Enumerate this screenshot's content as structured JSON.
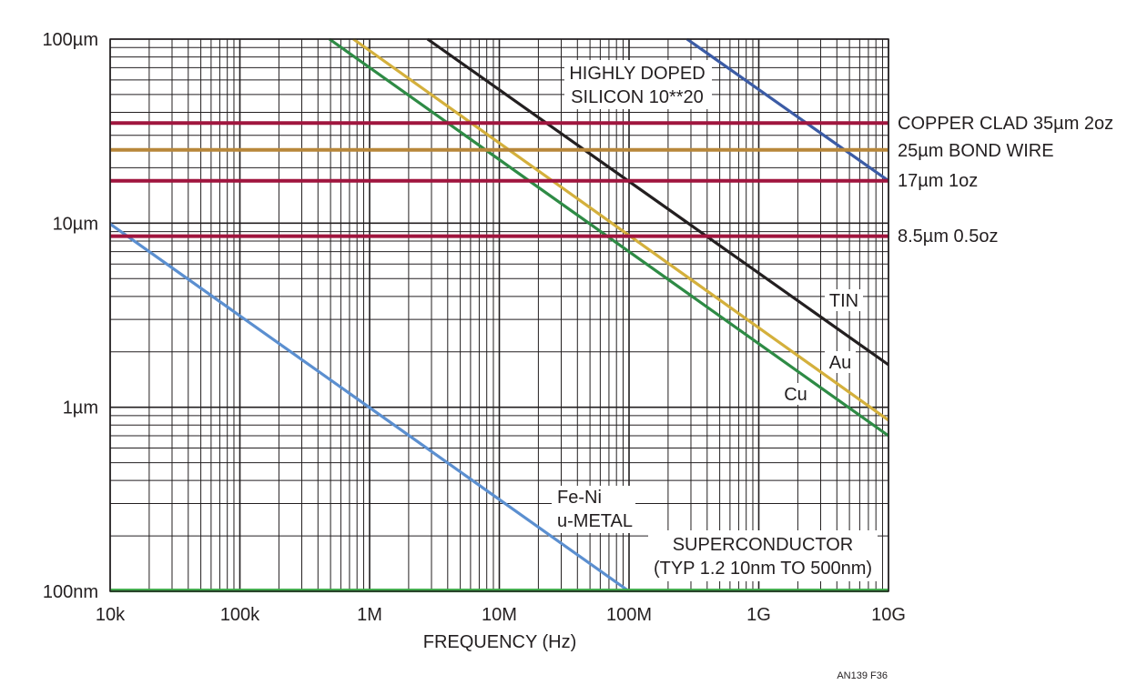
{
  "chart_data": {
    "type": "line",
    "xlabel": "FREQUENCY (Hz)",
    "x_scale": "log",
    "y_scale": "log",
    "xlim": [
      10000,
      10000000000
    ],
    "ylim": [
      1e-07,
      0.0001
    ],
    "grid": true,
    "x_ticks": [
      {
        "value": 10000,
        "label": "10k"
      },
      {
        "value": 100000,
        "label": "100k"
      },
      {
        "value": 1000000,
        "label": "1M"
      },
      {
        "value": 10000000,
        "label": "10M"
      },
      {
        "value": 100000000,
        "label": "100M"
      },
      {
        "value": 1000000000,
        "label": "1G"
      },
      {
        "value": 10000000000,
        "label": "10G"
      }
    ],
    "y_ticks": [
      {
        "value": 1e-07,
        "label": "100nm"
      },
      {
        "value": 1e-06,
        "label": "1µm"
      },
      {
        "value": 1e-05,
        "label": "10µm"
      },
      {
        "value": 0.0001,
        "label": "100µm"
      }
    ],
    "series": [
      {
        "id": "hds",
        "color": "#3b5ba5",
        "points": [
          [
            280000000,
            0.0001
          ],
          [
            10000000000,
            1.7e-05
          ]
        ]
      },
      {
        "id": "tin",
        "color": "#231f20",
        "points": [
          [
            2800000,
            0.0001
          ],
          [
            10000000000,
            1.7e-06
          ]
        ]
      },
      {
        "id": "au",
        "color": "#d4b03c",
        "points": [
          [
            750000,
            0.0001
          ],
          [
            10000000000,
            8.5e-07
          ]
        ]
      },
      {
        "id": "cu",
        "color": "#2e8b45",
        "points": [
          [
            490000,
            0.0001
          ],
          [
            10000000000,
            7e-07
          ]
        ]
      },
      {
        "id": "feni",
        "color": "#5b8fd0",
        "points": [
          [
            10000,
            9.9e-06
          ],
          [
            100000000,
            1e-07
          ]
        ]
      },
      {
        "id": "copper-clad",
        "color": "#a0153e",
        "points": [
          [
            10000,
            3.5e-05
          ],
          [
            10000000000,
            3.5e-05
          ]
        ]
      },
      {
        "id": "bond-wire",
        "color": "#b8873a",
        "points": [
          [
            10000,
            2.5e-05
          ],
          [
            10000000000,
            2.5e-05
          ]
        ]
      },
      {
        "id": "17um",
        "color": "#a0153e",
        "points": [
          [
            10000,
            1.7e-05
          ],
          [
            10000000000,
            1.7e-05
          ]
        ]
      },
      {
        "id": "8p5um",
        "color": "#a0153e",
        "points": [
          [
            10000,
            8.5e-06
          ],
          [
            10000000000,
            8.5e-06
          ]
        ]
      },
      {
        "id": "superconductor",
        "color": "#3aa845",
        "points": [
          [
            10000,
            1.01e-07
          ],
          [
            10000000000,
            1.01e-07
          ]
        ]
      }
    ],
    "annotations": {
      "hds_line1": "HIGHLY DOPED",
      "hds_line2": "SILICON 10**20",
      "copper_clad": "COPPER CLAD 35µm 2oz",
      "bond_wire": "25µm BOND WIRE",
      "oz1": "17µm 1oz",
      "oz05": "8.5µm 0.5oz",
      "tin": "TIN",
      "au": "Au",
      "cu": "Cu",
      "feni_line1": "Fe-Ni",
      "feni_line2": "u-METAL",
      "sc_line1": "SUPERCONDUCTOR",
      "sc_line2": "(TYP 1.2 10nm TO 500nm)"
    },
    "figure_id": "AN139 F36"
  }
}
